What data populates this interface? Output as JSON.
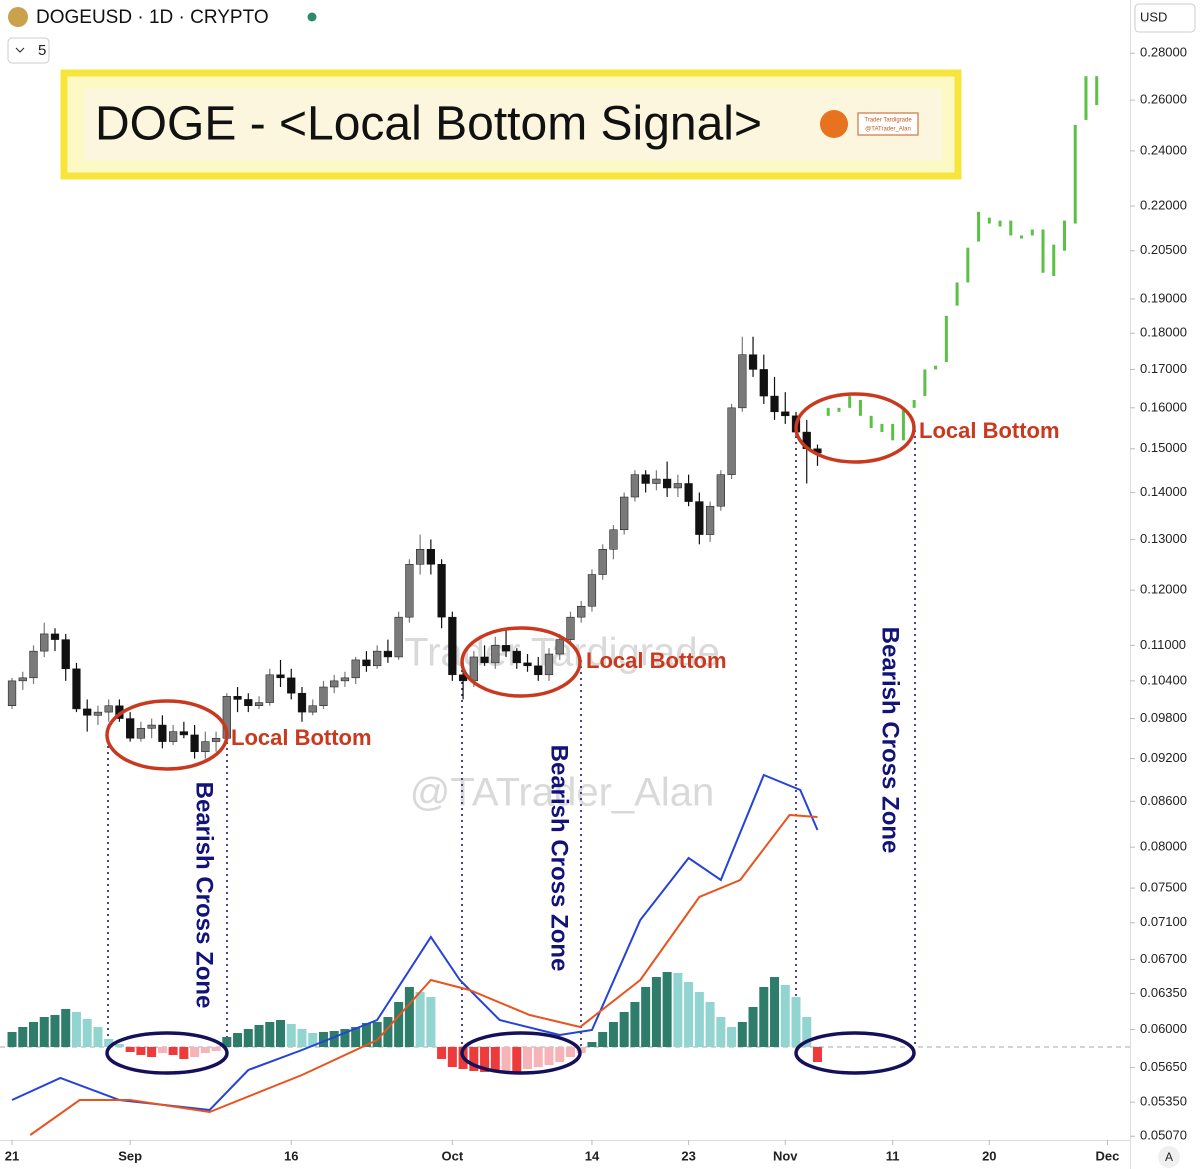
{
  "header": {
    "symbol": "DOGEUSD · 1D · CRYPTO",
    "interval_count": "5",
    "currency": "USD",
    "auto": "A"
  },
  "banner": {
    "title": "DOGE - <Local Bottom Signal>",
    "logo_name": "Trader Tardigrade",
    "logo_handle": "@TATrader_Alan"
  },
  "watermarks": [
    "Trader Tardigrade",
    "@TATrader_Alan"
  ],
  "chart_data": {
    "type": "candlestick",
    "log_y": true,
    "xlim": [
      -1.12,
      104.1
    ],
    "ylim": [
      0.0504,
      0.3045
    ],
    "xticks": [
      {
        "value": 0,
        "label": "21"
      },
      {
        "value": 11,
        "label": "Sep"
      },
      {
        "value": 26,
        "label": "16"
      },
      {
        "value": 41,
        "label": "Oct"
      },
      {
        "value": 54,
        "label": "14"
      },
      {
        "value": 63,
        "label": "23"
      },
      {
        "value": 72,
        "label": "Nov"
      },
      {
        "value": 82,
        "label": "11"
      },
      {
        "value": 91,
        "label": "20"
      },
      {
        "value": 102,
        "label": "Dec"
      }
    ],
    "yticks": [
      {
        "value": 0.28,
        "label": "0.28000"
      },
      {
        "value": 0.26,
        "label": "0.26000"
      },
      {
        "value": 0.24,
        "label": "0.24000"
      },
      {
        "value": 0.22,
        "label": "0.22000"
      },
      {
        "value": 0.205,
        "label": "0.20500"
      },
      {
        "value": 0.19,
        "label": "0.19000"
      },
      {
        "value": 0.18,
        "label": "0.18000"
      },
      {
        "value": 0.17,
        "label": "0.17000"
      },
      {
        "value": 0.16,
        "label": "0.16000"
      },
      {
        "value": 0.15,
        "label": "0.15000"
      },
      {
        "value": 0.14,
        "label": "0.14000"
      },
      {
        "value": 0.13,
        "label": "0.13000"
      },
      {
        "value": 0.12,
        "label": "0.12000"
      },
      {
        "value": 0.11,
        "label": "0.11000"
      },
      {
        "value": 0.104,
        "label": "0.10400"
      },
      {
        "value": 0.098,
        "label": "0.09800"
      },
      {
        "value": 0.092,
        "label": "0.09200"
      },
      {
        "value": 0.086,
        "label": "0.08600"
      },
      {
        "value": 0.08,
        "label": "0.08000"
      },
      {
        "value": 0.075,
        "label": "0.07500"
      },
      {
        "value": 0.071,
        "label": "0.07100"
      },
      {
        "value": 0.067,
        "label": "0.06700"
      },
      {
        "value": 0.0635,
        "label": "0.06350"
      },
      {
        "value": 0.06,
        "label": "0.06000"
      },
      {
        "value": 0.0565,
        "label": "0.05650"
      },
      {
        "value": 0.0535,
        "label": "0.05350"
      },
      {
        "value": 0.0507,
        "label": "0.05070"
      }
    ],
    "up_color": "#7a7a7a",
    "down_color": "#111111",
    "x": [
      0,
      1,
      2,
      3,
      4,
      5,
      6,
      7,
      8,
      9,
      10,
      11,
      12,
      13,
      14,
      15,
      16,
      17,
      18,
      19,
      20,
      21,
      22,
      23,
      24,
      25,
      26,
      27,
      28,
      29,
      30,
      31,
      32,
      33,
      34,
      35,
      36,
      37,
      38,
      39,
      40,
      41,
      42,
      43,
      44,
      45,
      46,
      47,
      48,
      49,
      50,
      51,
      52,
      53,
      54,
      55,
      56,
      57,
      58,
      59,
      60,
      61,
      62,
      63,
      64,
      65,
      66,
      67,
      68,
      69,
      70,
      71,
      72,
      73,
      74,
      75
    ],
    "open": [
      0.1,
      0.104,
      0.1045,
      0.109,
      0.112,
      0.111,
      0.106,
      0.0995,
      0.0985,
      0.099,
      0.1,
      0.098,
      0.095,
      0.0965,
      0.097,
      0.0945,
      0.096,
      0.0955,
      0.093,
      0.0945,
      0.095,
      0.1015,
      0.101,
      0.1,
      0.1005,
      0.105,
      0.1045,
      0.102,
      0.099,
      0.1,
      0.103,
      0.104,
      0.1045,
      0.1075,
      0.1065,
      0.109,
      0.108,
      0.115,
      0.125,
      0.128,
      0.125,
      0.115,
      0.105,
      0.104,
      0.108,
      0.107,
      0.11,
      0.109,
      0.107,
      0.1065,
      0.105,
      0.1085,
      0.111,
      0.115,
      0.117,
      0.123,
      0.128,
      0.132,
      0.139,
      0.144,
      0.142,
      0.143,
      0.141,
      0.142,
      0.138,
      0.131,
      0.137,
      0.144,
      0.16,
      0.174,
      0.17,
      0.163,
      0.159,
      0.158,
      0.154,
      0.15
    ],
    "high": [
      0.1045,
      0.1055,
      0.11,
      0.114,
      0.113,
      0.112,
      0.107,
      0.101,
      0.1,
      0.101,
      0.101,
      0.099,
      0.0975,
      0.098,
      0.0985,
      0.097,
      0.0975,
      0.097,
      0.096,
      0.096,
      0.102,
      0.103,
      0.102,
      0.1015,
      0.106,
      0.1075,
      0.106,
      0.103,
      0.101,
      0.104,
      0.105,
      0.1055,
      0.108,
      0.109,
      0.11,
      0.111,
      0.116,
      0.126,
      0.131,
      0.13,
      0.126,
      0.116,
      0.107,
      0.109,
      0.11,
      0.1115,
      0.113,
      0.1095,
      0.1085,
      0.108,
      0.1095,
      0.112,
      0.116,
      0.118,
      0.124,
      0.129,
      0.133,
      0.14,
      0.145,
      0.145,
      0.145,
      0.147,
      0.144,
      0.144,
      0.14,
      0.138,
      0.145,
      0.161,
      0.179,
      0.179,
      0.174,
      0.168,
      0.164,
      0.159,
      0.157,
      0.151
    ],
    "low": [
      0.0995,
      0.1025,
      0.1035,
      0.108,
      0.109,
      0.104,
      0.099,
      0.096,
      0.097,
      0.0975,
      0.0975,
      0.0945,
      0.0945,
      0.095,
      0.0935,
      0.094,
      0.095,
      0.092,
      0.092,
      0.093,
      0.0945,
      0.099,
      0.099,
      0.0995,
      0.1,
      0.103,
      0.101,
      0.0975,
      0.0985,
      0.0995,
      0.102,
      0.103,
      0.1035,
      0.1055,
      0.106,
      0.107,
      0.1075,
      0.114,
      0.123,
      0.123,
      0.113,
      0.104,
      0.101,
      0.103,
      0.1065,
      0.106,
      0.108,
      0.106,
      0.1055,
      0.104,
      0.104,
      0.1075,
      0.11,
      0.114,
      0.116,
      0.122,
      0.126,
      0.131,
      0.138,
      0.14,
      0.1405,
      0.139,
      0.139,
      0.137,
      0.129,
      0.1295,
      0.136,
      0.143,
      0.159,
      0.168,
      0.161,
      0.157,
      0.156,
      0.153,
      0.142,
      0.146
    ],
    "close": [
      0.104,
      0.1045,
      0.109,
      0.112,
      0.111,
      0.106,
      0.0995,
      0.0985,
      0.099,
      0.1,
      0.098,
      0.095,
      0.0965,
      0.097,
      0.0945,
      0.096,
      0.0955,
      0.093,
      0.0945,
      0.095,
      0.1015,
      0.101,
      0.1,
      0.1005,
      0.105,
      0.1045,
      0.102,
      0.099,
      0.1,
      0.103,
      0.104,
      0.1045,
      0.1075,
      0.1065,
      0.109,
      0.108,
      0.115,
      0.125,
      0.128,
      0.125,
      0.115,
      0.105,
      0.104,
      0.108,
      0.107,
      0.11,
      0.109,
      0.107,
      0.1065,
      0.105,
      0.1085,
      0.111,
      0.115,
      0.117,
      0.123,
      0.128,
      0.132,
      0.139,
      0.144,
      0.142,
      0.143,
      0.141,
      0.142,
      0.138,
      0.131,
      0.137,
      0.144,
      0.16,
      0.174,
      0.17,
      0.163,
      0.159,
      0.158,
      0.154,
      0.15,
      0.149
    ],
    "projection": {
      "color": "#5cbf46",
      "x": [
        76,
        77,
        78,
        79,
        80,
        81,
        82,
        83,
        84,
        85,
        86,
        87,
        88,
        89,
        90,
        91,
        92,
        93,
        94,
        95,
        96,
        97,
        98,
        99,
        100,
        101
      ],
      "low": [
        0.158,
        0.159,
        0.16,
        0.158,
        0.155,
        0.154,
        0.152,
        0.152,
        0.16,
        0.163,
        0.17,
        0.172,
        0.188,
        0.195,
        0.208,
        0.214,
        0.213,
        0.21,
        0.21,
        0.21,
        0.198,
        0.197,
        0.205,
        0.214,
        0.252,
        0.258
      ],
      "high": [
        0.16,
        0.16,
        0.163,
        0.162,
        0.158,
        0.156,
        0.156,
        0.16,
        0.162,
        0.17,
        0.171,
        0.185,
        0.195,
        0.206,
        0.218,
        0.216,
        0.215,
        0.215,
        0.21,
        0.212,
        0.212,
        0.207,
        0.215,
        0.25,
        0.27,
        0.27
      ]
    },
    "macd": {
      "ylim": [
        -93,
        380
      ],
      "rise_pos": "#2e7d6b",
      "fall_pos": "#92d5d0",
      "fall_neg": "#ee3a3a",
      "rise_neg": "#f6b4b8",
      "histogram": [
        15,
        20,
        25,
        30,
        32,
        38,
        35,
        28,
        20,
        8,
        3,
        -5,
        -8,
        -10,
        -6,
        -8,
        -12,
        -10,
        -6,
        -4,
        10,
        14,
        18,
        22,
        25,
        27,
        23,
        18,
        14,
        15,
        16,
        18,
        20,
        24,
        25,
        30,
        45,
        60,
        55,
        50,
        -12,
        -20,
        -22,
        -24,
        -25,
        -25,
        -24,
        -25,
        -22,
        -20,
        -18,
        -15,
        -10,
        -6,
        5,
        15,
        25,
        35,
        45,
        60,
        70,
        75,
        74,
        65,
        55,
        45,
        30,
        20,
        25,
        40,
        60,
        70,
        62,
        50,
        30,
        -15
      ],
      "series": [
        {
          "color": "#2443d8",
          "x": [
            0,
            4.5,
            10,
            18.4,
            22,
            27,
            34,
            39,
            41.7,
            45.4,
            51,
            54,
            58.5,
            63,
            66,
            70,
            73.4,
            75
          ],
          "values": [
            -53,
            -31,
            -53,
            -63,
            -23,
            -3,
            27,
            110,
            67,
            27,
            12,
            17,
            127,
            189,
            167,
            272,
            257,
            217
          ]
        },
        {
          "color": "#e8541e",
          "x": [
            1.7,
            6.3,
            11,
            18.4,
            27,
            34,
            39,
            42.6,
            48.2,
            52.9,
            58.5,
            64,
            67.8,
            72.4,
            75
          ],
          "values": [
            -88,
            -53,
            -53,
            -65,
            -28,
            7,
            67,
            57,
            32,
            20,
            67,
            150,
            167,
            232,
            230
          ]
        }
      ]
    },
    "annotations": [
      "Local Bottom",
      "Local Bottom",
      "Local Bottom",
      "Bearish Cross Zone",
      "Bearish Cross Zone",
      "Bearish Cross Zone"
    ]
  }
}
